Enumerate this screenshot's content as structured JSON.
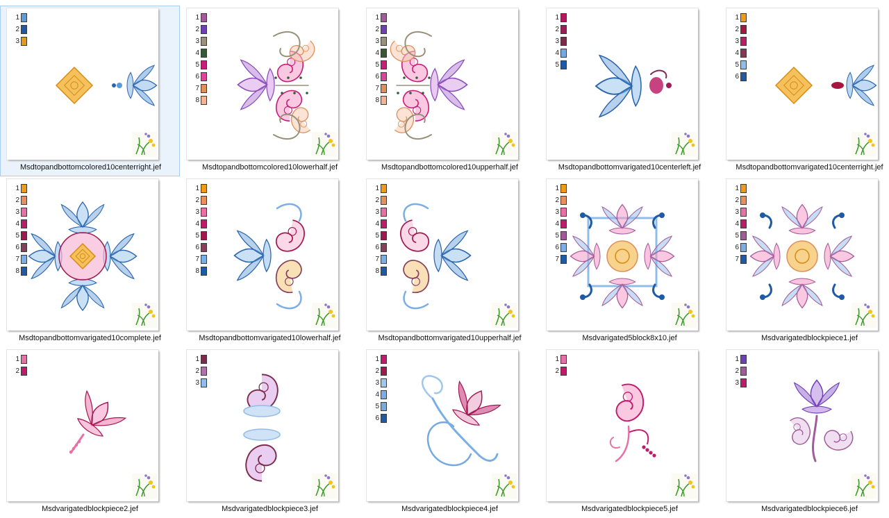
{
  "files": [
    {
      "name": "Msdtopandbottomcolored10centerright.jef",
      "selected": true,
      "motif": "pair-right",
      "palette": [
        "#5d9ad8",
        "#1f5aa6",
        "#e39a1a"
      ]
    },
    {
      "name": "Msdtopandbottomcolored10lowerhalf.jef",
      "motif": "half-left",
      "palette": [
        "#a35a9a",
        "#6e3fb5",
        "#9a8f78",
        "#355b35",
        "#c81e7a",
        "#e0449a",
        "#e08f5a",
        "#f3b394"
      ]
    },
    {
      "name": "Msdtopandbottomcolored10upperhalf.jef",
      "motif": "half-right",
      "palette": [
        "#a35a9a",
        "#6e3fb5",
        "#9a8f78",
        "#355b35",
        "#c81e7a",
        "#e0449a",
        "#e08f5a",
        "#f3b394"
      ]
    },
    {
      "name": "Msdtopandbottomvarigated10centerleft.jef",
      "motif": "single-left",
      "palette": [
        "#b8145f",
        "#9c1e58",
        "#7a2d4a",
        "#77a8e0",
        "#1f5aa6"
      ]
    },
    {
      "name": "Msdtopandbottomvarigated10centerright.jef",
      "motif": "pair-right2",
      "palette": [
        "#f09a17",
        "#a8163f",
        "#c01a6a",
        "#8a3458",
        "#8fbce8",
        "#1f5aa6"
      ]
    },
    {
      "name": "Msdtopandbottomvarigated10complete.jef",
      "motif": "full",
      "palette": [
        "#f09a17",
        "#e88f5e",
        "#e970a6",
        "#c01a6a",
        "#a3164f",
        "#86405c",
        "#7aaee5",
        "#1f5aa6"
      ]
    },
    {
      "name": "Msdtopandbottomvarigated10lowerhalf.jef",
      "motif": "vhalf-left",
      "palette": [
        "#f09a17",
        "#e88f5e",
        "#e970a6",
        "#c01a6a",
        "#a3164f",
        "#86405c",
        "#7aaee5",
        "#1f5aa6"
      ]
    },
    {
      "name": "Msdtopandbottomvarigated10upperhalf.jef",
      "motif": "vhalf-right",
      "palette": [
        "#f09a17",
        "#e88f5e",
        "#e970a6",
        "#c01a6a",
        "#a3164f",
        "#86405c",
        "#7aaee5",
        "#1f5aa6"
      ]
    },
    {
      "name": "Msdvarigated5block8x10.jef",
      "motif": "block",
      "palette": [
        "#f09a17",
        "#e88f5e",
        "#e970a6",
        "#c01a6a",
        "#a35a9a",
        "#7aaee5",
        "#1f5aa6"
      ]
    },
    {
      "name": "Msdvarigatedblockpiece1.jef",
      "motif": "block2",
      "palette": [
        "#f09a17",
        "#e88f5e",
        "#e970a6",
        "#c01a6a",
        "#a35a9a",
        "#7aaee5",
        "#1f5aa6"
      ]
    },
    {
      "name": "Msdvarigatedblockpiece2.jef",
      "motif": "flower",
      "palette": [
        "#e970a6",
        "#c01a6a"
      ]
    },
    {
      "name": "Msdvarigatedblockpiece3.jef",
      "motif": "paisley-pair",
      "palette": [
        "#7a2d4a",
        "#b070a8",
        "#8fbce8"
      ]
    },
    {
      "name": "Msdvarigatedblockpiece4.jef",
      "motif": "swirl-flower",
      "palette": [
        "#c01a6a",
        "#a3164f",
        "#9fc6ec",
        "#7aaee5",
        "#77a8e0",
        "#1f5aa6"
      ]
    },
    {
      "name": "Msdvarigatedblockpiece5.jef",
      "motif": "stem",
      "palette": [
        "#e970a6",
        "#c01a6a"
      ]
    },
    {
      "name": "Msdvarigatedblockpiece6.jef",
      "motif": "bud",
      "palette": [
        "#6e3fb5",
        "#a35a9a",
        "#c01a6a"
      ]
    }
  ]
}
